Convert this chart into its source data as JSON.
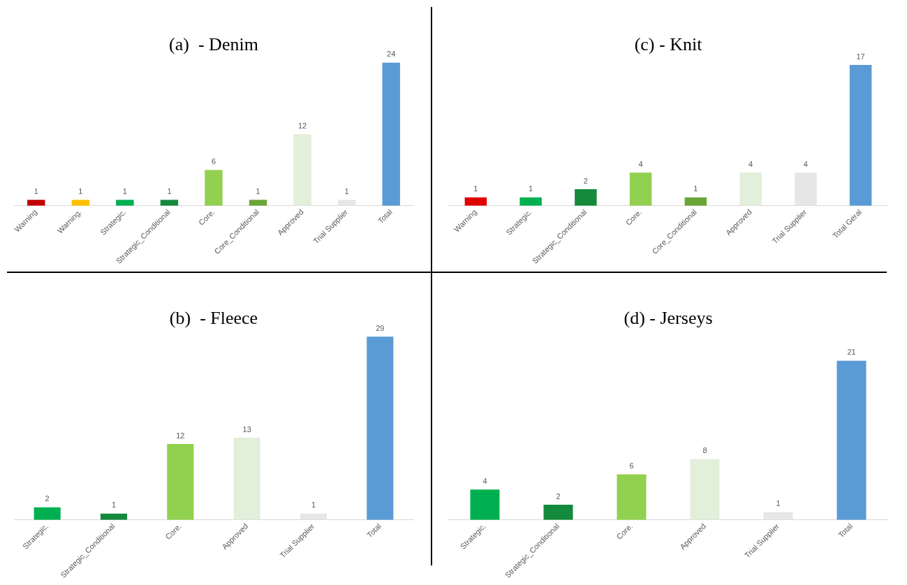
{
  "chart_data": [
    {
      "type": "bar",
      "title": "(a)  - Denim",
      "categories": [
        "Warning",
        "Warning.",
        "Strategic.",
        "Strategic_Conditional",
        "Core.",
        "Core_Conditional",
        "Approved",
        "Trial Supplier",
        "Total"
      ],
      "values": [
        1,
        1,
        1,
        1,
        6,
        1,
        12,
        1,
        24
      ],
      "colors": [
        "#c00000",
        "#ffc000",
        "#00b050",
        "#138a3c",
        "#92d050",
        "#6aa637",
        "#e2efda",
        "#e7e6e6",
        "#5b9bd5"
      ],
      "data_labels": true,
      "grid": false,
      "legend": false,
      "tick_labels": "x"
    },
    {
      "type": "bar",
      "title": "(c) - Knit",
      "categories": [
        "Warning",
        "Strategic.",
        "Strategic_Conditional",
        "Core.",
        "Core_Conditional",
        "Approved",
        "Trial Supplier",
        "Total Geral"
      ],
      "values": [
        1,
        1,
        2,
        4,
        1,
        4,
        4,
        17
      ],
      "colors": [
        "#e00000",
        "#00b050",
        "#138a3c",
        "#92d050",
        "#6aa637",
        "#e2efda",
        "#e7e6e6",
        "#5b9bd5"
      ],
      "data_labels": true,
      "grid": false,
      "legend": false,
      "tick_labels": "x"
    },
    {
      "type": "bar",
      "title": "(b)  - Fleece",
      "categories": [
        "Strategic.",
        "Strategic_Conditional",
        "Core.",
        "Approved",
        "Trial Supplier",
        "Total"
      ],
      "values": [
        2,
        1,
        12,
        13,
        1,
        29
      ],
      "colors": [
        "#00b050",
        "#138a3c",
        "#92d050",
        "#e2efda",
        "#e7e6e6",
        "#5b9bd5"
      ],
      "data_labels": true,
      "grid": false,
      "legend": false,
      "tick_labels": "x"
    },
    {
      "type": "bar",
      "title": "(d) - Jerseys",
      "categories": [
        "Strategic.",
        "Strategic_Conditional",
        "Core.",
        "Approved",
        "Trial Supplier",
        "Total"
      ],
      "values": [
        4,
        2,
        6,
        8,
        1,
        21
      ],
      "colors": [
        "#00b050",
        "#138a3c",
        "#92d050",
        "#e2efda",
        "#e7e6e6",
        "#5b9bd5"
      ],
      "data_labels": true,
      "grid": false,
      "legend": false,
      "tick_labels": "x"
    }
  ]
}
